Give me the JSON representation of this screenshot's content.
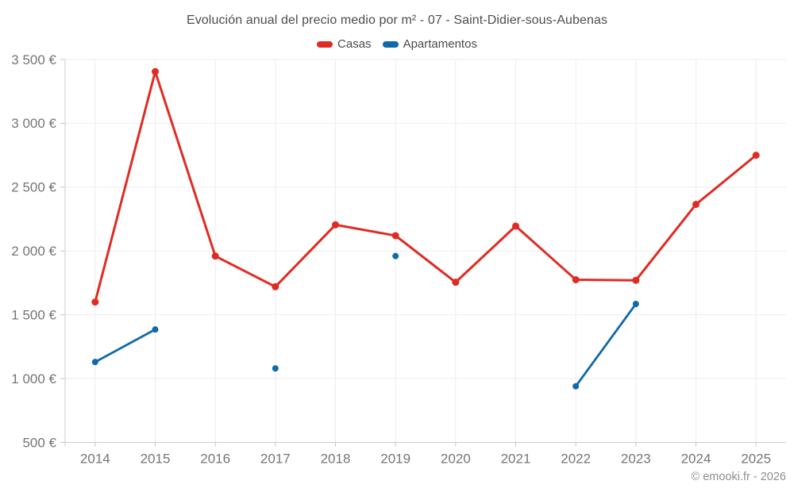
{
  "chart_data": {
    "type": "line",
    "title": "Evolución anual del precio medio por m² - 07 - Saint-Didier-sous-Aubenas",
    "categories": [
      "2014",
      "2015",
      "2016",
      "2017",
      "2018",
      "2019",
      "2020",
      "2021",
      "2022",
      "2023",
      "2024",
      "2025"
    ],
    "series": [
      {
        "name": "Casas",
        "color": "#e02b22",
        "marker_radius": 4.5,
        "line_width": 3,
        "values": [
          1600,
          3405,
          1960,
          1720,
          2205,
          2120,
          1755,
          2195,
          1775,
          1770,
          2365,
          2750
        ]
      },
      {
        "name": "Apartamentos",
        "color": "#1069a8",
        "marker_radius": 4,
        "line_width": 2.8,
        "values": [
          1130,
          1385,
          null,
          1080,
          null,
          1960,
          null,
          null,
          940,
          1585,
          null,
          null
        ]
      }
    ],
    "ylim": [
      500,
      3500
    ],
    "y_ticks": [
      {
        "value": 500,
        "label": "500 €"
      },
      {
        "value": 1000,
        "label": "1 000 €"
      },
      {
        "value": 1500,
        "label": "1 500 €"
      },
      {
        "value": 2000,
        "label": "2 000 €"
      },
      {
        "value": 2500,
        "label": "2 500 €"
      },
      {
        "value": 3000,
        "label": "3 000 €"
      },
      {
        "value": 3500,
        "label": "3 500 €"
      }
    ],
    "xlabel": "",
    "ylabel": "",
    "grid": true,
    "legend_position": "top"
  },
  "footer": {
    "copyright": "© emooki.fr - 2026"
  }
}
